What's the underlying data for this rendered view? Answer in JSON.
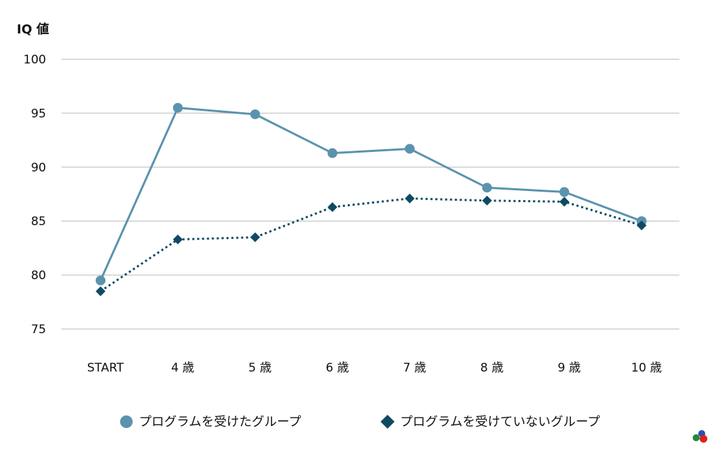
{
  "chart_data": {
    "type": "line",
    "ylabel": "IQ 値",
    "categories": [
      "START",
      "4 歳",
      "5 歳",
      "6 歳",
      "7 歳",
      "8 歳",
      "9 歳",
      "10 歳"
    ],
    "ylim": [
      75,
      100
    ],
    "yticks": [
      75,
      80,
      85,
      90,
      95,
      100
    ],
    "grid": true,
    "legend_position": "bottom",
    "series": [
      {
        "name": "プログラムを受けたグループ",
        "values": [
          79.5,
          95.5,
          94.9,
          91.3,
          91.7,
          88.1,
          87.7,
          85.0
        ],
        "color": "#5b93ae",
        "marker": "circle",
        "line_style": "solid"
      },
      {
        "name": "プログラムを受けていないグループ",
        "values": [
          78.5,
          83.3,
          83.5,
          86.3,
          87.1,
          86.9,
          86.8,
          84.6
        ],
        "color": "#0f4a63",
        "marker": "diamond",
        "line_style": "dotted"
      }
    ]
  }
}
